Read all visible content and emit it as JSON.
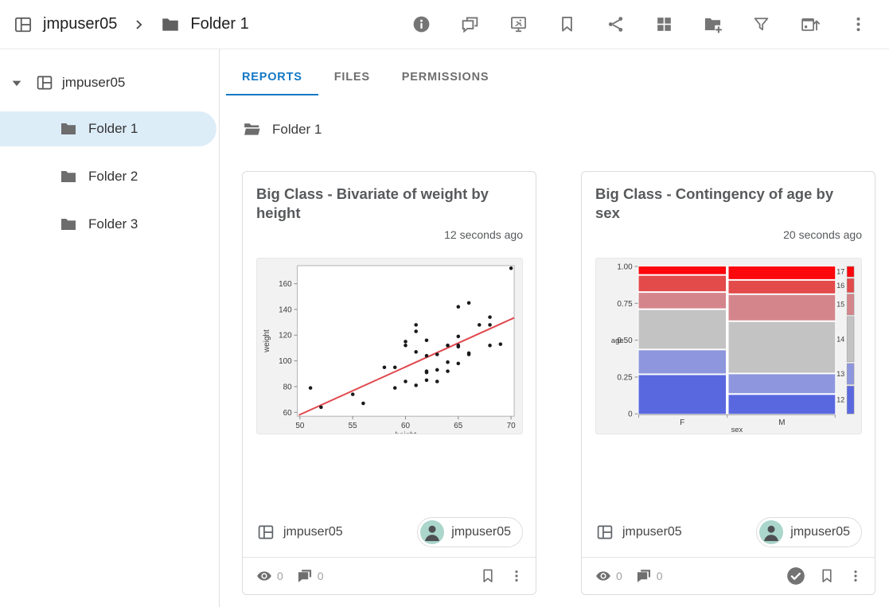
{
  "app_bar": {
    "space_name": "jmpuser05",
    "folder_name": "Folder 1",
    "toolbar": [
      {
        "icon": "info"
      },
      {
        "icon": "comments"
      },
      {
        "icon": "interactive-report"
      },
      {
        "icon": "bookmark"
      },
      {
        "icon": "share"
      },
      {
        "icon": "grid-view"
      },
      {
        "icon": "add-folder"
      },
      {
        "icon": "filter"
      },
      {
        "icon": "schedule-publish"
      },
      {
        "icon": "more"
      }
    ]
  },
  "sidebar": {
    "root_label": "jmpuser05",
    "folders": [
      {
        "label": "Folder 1",
        "selected": true
      },
      {
        "label": "Folder 2",
        "selected": false
      },
      {
        "label": "Folder 3",
        "selected": false
      }
    ]
  },
  "tabs": [
    {
      "label": "REPORTS",
      "active": true
    },
    {
      "label": "FILES",
      "active": false
    },
    {
      "label": "PERMISSIONS",
      "active": false
    }
  ],
  "folder_header": {
    "label": "Folder 1"
  },
  "cards": [
    {
      "title": "Big Class - Bivariate of weight by height",
      "timestamp": "12 seconds ago",
      "space": "jmpuser05",
      "author": "jmpuser05",
      "views": "0",
      "comments": "0",
      "approved": false
    },
    {
      "title": "Big Class - Contingency of age by sex",
      "timestamp": "20 seconds ago",
      "space": "jmpuser05",
      "author": "jmpuser05",
      "views": "0",
      "comments": "0",
      "approved": true
    }
  ],
  "colors": {
    "accent_blue": "#1478c4",
    "sidebar_selected": "#ddedf8",
    "icon_gray": "#757575",
    "avatar_bg": "#abd6cb"
  },
  "chart_data": [
    {
      "type": "scatter",
      "title": "Big Class - Bivariate of weight by height",
      "xlabel": "height",
      "ylabel": "weight",
      "xlim": [
        49.75,
        70.3
      ],
      "ylim": [
        57,
        174
      ],
      "xticks": [
        50,
        55,
        60,
        65,
        70
      ],
      "yticks": [
        60,
        80,
        100,
        120,
        140,
        160
      ],
      "grid": false,
      "point_color": "#1a1a1a",
      "line_color": "#e0484e",
      "fit_line": {
        "x1": 49.9,
        "y1": 57.9,
        "x2": 70.3,
        "y2": 133.5
      },
      "points": [
        [
          51,
          79
        ],
        [
          52,
          64
        ],
        [
          55,
          74
        ],
        [
          56,
          67
        ],
        [
          58,
          95
        ],
        [
          59,
          79
        ],
        [
          59,
          95
        ],
        [
          60,
          84
        ],
        [
          60,
          112
        ],
        [
          60,
          115
        ],
        [
          61,
          81
        ],
        [
          61,
          107
        ],
        [
          61,
          123
        ],
        [
          61,
          128
        ],
        [
          62,
          85
        ],
        [
          62,
          91
        ],
        [
          62,
          92
        ],
        [
          62,
          104
        ],
        [
          62,
          116
        ],
        [
          63,
          84
        ],
        [
          63,
          93
        ],
        [
          63,
          105
        ],
        [
          64,
          92
        ],
        [
          64,
          99
        ],
        [
          64,
          112
        ],
        [
          64,
          112
        ],
        [
          65,
          98
        ],
        [
          65,
          111
        ],
        [
          65,
          112
        ],
        [
          65,
          119
        ],
        [
          65,
          142
        ],
        [
          66,
          105
        ],
        [
          66,
          106
        ],
        [
          66,
          145
        ],
        [
          67,
          128
        ],
        [
          68,
          112
        ],
        [
          68,
          128
        ],
        [
          68,
          134
        ],
        [
          69,
          113
        ],
        [
          70,
          172
        ]
      ]
    },
    {
      "type": "mosaic",
      "title": "Big Class - Contingency of age by sex",
      "xlabel": "sex",
      "ylabel": "age",
      "yticks": [
        "0",
        "0.25",
        "0.50",
        "0.75",
        "1.00"
      ],
      "categories": [
        "F",
        "M"
      ],
      "levels": [
        "12",
        "13",
        "14",
        "15",
        "16",
        "17"
      ],
      "colors": {
        "12": "#5a68e0",
        "13": "#8e97dd",
        "14": "#c3c3c3",
        "15": "#d4858b",
        "16": "#e34a4a",
        "17": "#fb070c"
      },
      "counts": {
        "F": [
          5,
          3,
          5,
          2,
          2,
          1
        ],
        "M": [
          3,
          3,
          8,
          4,
          2,
          2
        ]
      }
    }
  ]
}
